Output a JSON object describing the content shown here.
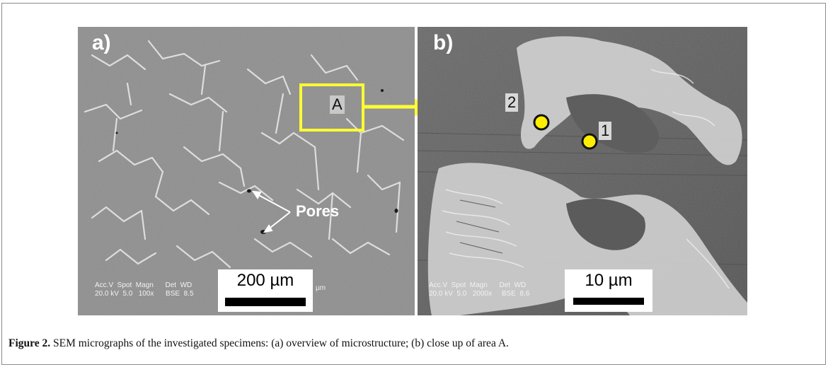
{
  "figure": {
    "panel_a": {
      "label": "a)",
      "meta_line1": "Acc.V  Spot  Magn      Det  WD",
      "meta_line2": "20.0 kV  5.0   100x      BSE  8.5",
      "meta_fragment": "µm",
      "scale_label": "200 µm",
      "region_label": "A",
      "pores_label": "Pores"
    },
    "panel_b": {
      "label": "b)",
      "meta_line1": "Acc.V  Spot  Magn      Det  WD",
      "meta_line2": "20.0 kV  5.0   2000x     BSE  8.6",
      "scale_label": "10 µm",
      "point_1": "1",
      "point_2": "2"
    },
    "colors": {
      "highlight": "#ffff33",
      "marker": "#ffee00"
    }
  },
  "caption": {
    "label": "Figure 2.",
    "text": " SEM micrographs of the investigated specimens: (a) overview of microstructure; (b) close up of area A."
  }
}
